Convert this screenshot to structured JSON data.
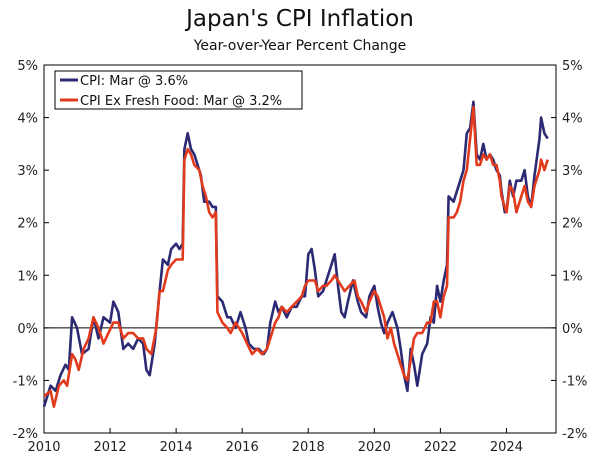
{
  "chart_data": {
    "type": "line",
    "title": "Japan's CPI Inflation",
    "subtitle": "Year-over-Year Percent Change",
    "xlabel": "",
    "ylabel": "",
    "xlim": [
      2010,
      2025.5
    ],
    "ylim": [
      -2,
      5
    ],
    "x_ticks": [
      "2010",
      "2012",
      "2014",
      "2016",
      "2018",
      "2020",
      "2022",
      "2024"
    ],
    "y_ticks": [
      "5%",
      "4%",
      "3%",
      "2%",
      "1%",
      "0%",
      "-1%",
      "-2%"
    ],
    "y_ticks_right": [
      "5%",
      "4%",
      "3%",
      "2%",
      "1%",
      "0%",
      "-1%",
      "-2%"
    ],
    "reference_line": 0,
    "legend_position": "top-left",
    "series": [
      {
        "name": "CPI: Mar @ 3.6%",
        "color": "#2b2a73",
        "points": [
          [
            2010.0,
            -1.5
          ],
          [
            2010.2,
            -1.1
          ],
          [
            2010.35,
            -1.2
          ],
          [
            2010.5,
            -0.9
          ],
          [
            2010.65,
            -0.7
          ],
          [
            2010.75,
            -0.8
          ],
          [
            2010.85,
            0.2
          ],
          [
            2011.0,
            0.0
          ],
          [
            2011.15,
            -0.5
          ],
          [
            2011.35,
            -0.4
          ],
          [
            2011.5,
            0.2
          ],
          [
            2011.65,
            -0.2
          ],
          [
            2011.8,
            0.2
          ],
          [
            2012.0,
            0.1
          ],
          [
            2012.1,
            0.5
          ],
          [
            2012.25,
            0.3
          ],
          [
            2012.4,
            -0.4
          ],
          [
            2012.55,
            -0.3
          ],
          [
            2012.7,
            -0.4
          ],
          [
            2012.85,
            -0.2
          ],
          [
            2013.0,
            -0.3
          ],
          [
            2013.1,
            -0.8
          ],
          [
            2013.2,
            -0.9
          ],
          [
            2013.35,
            -0.3
          ],
          [
            2013.5,
            0.7
          ],
          [
            2013.6,
            1.3
          ],
          [
            2013.75,
            1.2
          ],
          [
            2013.85,
            1.5
          ],
          [
            2014.0,
            1.6
          ],
          [
            2014.1,
            1.5
          ],
          [
            2014.2,
            1.6
          ],
          [
            2014.25,
            3.4
          ],
          [
            2014.35,
            3.7
          ],
          [
            2014.45,
            3.4
          ],
          [
            2014.55,
            3.3
          ],
          [
            2014.65,
            3.1
          ],
          [
            2014.75,
            2.9
          ],
          [
            2014.85,
            2.4
          ],
          [
            2015.0,
            2.4
          ],
          [
            2015.1,
            2.3
          ],
          [
            2015.2,
            2.3
          ],
          [
            2015.25,
            0.6
          ],
          [
            2015.4,
            0.5
          ],
          [
            2015.55,
            0.2
          ],
          [
            2015.65,
            0.2
          ],
          [
            2015.8,
            0.0
          ],
          [
            2015.95,
            0.3
          ],
          [
            2016.1,
            0.0
          ],
          [
            2016.2,
            -0.3
          ],
          [
            2016.35,
            -0.4
          ],
          [
            2016.5,
            -0.4
          ],
          [
            2016.65,
            -0.5
          ],
          [
            2016.75,
            -0.4
          ],
          [
            2016.85,
            0.1
          ],
          [
            2017.0,
            0.5
          ],
          [
            2017.1,
            0.3
          ],
          [
            2017.2,
            0.4
          ],
          [
            2017.35,
            0.2
          ],
          [
            2017.5,
            0.4
          ],
          [
            2017.65,
            0.4
          ],
          [
            2017.8,
            0.6
          ],
          [
            2017.9,
            0.6
          ],
          [
            2018.0,
            1.4
          ],
          [
            2018.1,
            1.5
          ],
          [
            2018.2,
            1.1
          ],
          [
            2018.3,
            0.6
          ],
          [
            2018.45,
            0.7
          ],
          [
            2018.55,
            0.9
          ],
          [
            2018.7,
            1.2
          ],
          [
            2018.8,
            1.4
          ],
          [
            2018.9,
            0.8
          ],
          [
            2019.0,
            0.3
          ],
          [
            2019.1,
            0.2
          ],
          [
            2019.2,
            0.5
          ],
          [
            2019.35,
            0.9
          ],
          [
            2019.5,
            0.5
          ],
          [
            2019.6,
            0.3
          ],
          [
            2019.75,
            0.2
          ],
          [
            2019.85,
            0.6
          ],
          [
            2020.0,
            0.8
          ],
          [
            2020.1,
            0.4
          ],
          [
            2020.2,
            0.1
          ],
          [
            2020.3,
            -0.1
          ],
          [
            2020.4,
            0.1
          ],
          [
            2020.55,
            0.3
          ],
          [
            2020.7,
            0.0
          ],
          [
            2020.8,
            -0.4
          ],
          [
            2020.9,
            -0.9
          ],
          [
            2021.0,
            -1.2
          ],
          [
            2021.1,
            -0.4
          ],
          [
            2021.2,
            -0.7
          ],
          [
            2021.3,
            -1.1
          ],
          [
            2021.45,
            -0.5
          ],
          [
            2021.6,
            -0.3
          ],
          [
            2021.7,
            0.2
          ],
          [
            2021.8,
            0.1
          ],
          [
            2021.9,
            0.8
          ],
          [
            2022.0,
            0.5
          ],
          [
            2022.1,
            0.9
          ],
          [
            2022.2,
            1.2
          ],
          [
            2022.25,
            2.5
          ],
          [
            2022.4,
            2.4
          ],
          [
            2022.5,
            2.6
          ],
          [
            2022.6,
            2.8
          ],
          [
            2022.7,
            3.0
          ],
          [
            2022.8,
            3.7
          ],
          [
            2022.9,
            3.8
          ],
          [
            2023.0,
            4.3
          ],
          [
            2023.1,
            3.3
          ],
          [
            2023.2,
            3.2
          ],
          [
            2023.3,
            3.5
          ],
          [
            2023.4,
            3.2
          ],
          [
            2023.5,
            3.3
          ],
          [
            2023.6,
            3.2
          ],
          [
            2023.7,
            3.0
          ],
          [
            2023.8,
            2.9
          ],
          [
            2023.85,
            2.6
          ],
          [
            2023.95,
            2.2
          ],
          [
            2024.0,
            2.2
          ],
          [
            2024.1,
            2.8
          ],
          [
            2024.2,
            2.5
          ],
          [
            2024.3,
            2.8
          ],
          [
            2024.45,
            2.8
          ],
          [
            2024.55,
            3.0
          ],
          [
            2024.65,
            2.5
          ],
          [
            2024.75,
            2.3
          ],
          [
            2024.85,
            2.9
          ],
          [
            2025.0,
            3.6
          ],
          [
            2025.05,
            4.0
          ],
          [
            2025.15,
            3.7
          ],
          [
            2025.25,
            3.6
          ]
        ]
      },
      {
        "name": "CPI Ex Fresh Food: Mar @ 3.2%",
        "color": "#e23a1c",
        "points": [
          [
            2010.0,
            -1.3
          ],
          [
            2010.2,
            -1.2
          ],
          [
            2010.3,
            -1.5
          ],
          [
            2010.45,
            -1.1
          ],
          [
            2010.6,
            -1.0
          ],
          [
            2010.7,
            -1.1
          ],
          [
            2010.85,
            -0.5
          ],
          [
            2010.95,
            -0.6
          ],
          [
            2011.05,
            -0.8
          ],
          [
            2011.2,
            -0.4
          ],
          [
            2011.35,
            -0.2
          ],
          [
            2011.5,
            0.2
          ],
          [
            2011.65,
            0.0
          ],
          [
            2011.8,
            -0.3
          ],
          [
            2011.95,
            -0.1
          ],
          [
            2012.1,
            0.1
          ],
          [
            2012.25,
            0.1
          ],
          [
            2012.4,
            -0.2
          ],
          [
            2012.55,
            -0.1
          ],
          [
            2012.7,
            -0.1
          ],
          [
            2012.85,
            -0.2
          ],
          [
            2013.0,
            -0.2
          ],
          [
            2013.1,
            -0.4
          ],
          [
            2013.25,
            -0.5
          ],
          [
            2013.4,
            0.0
          ],
          [
            2013.5,
            0.7
          ],
          [
            2013.6,
            0.7
          ],
          [
            2013.75,
            1.1
          ],
          [
            2013.85,
            1.2
          ],
          [
            2014.0,
            1.3
          ],
          [
            2014.1,
            1.3
          ],
          [
            2014.2,
            1.3
          ],
          [
            2014.25,
            3.2
          ],
          [
            2014.35,
            3.4
          ],
          [
            2014.45,
            3.3
          ],
          [
            2014.55,
            3.1
          ],
          [
            2014.7,
            3.0
          ],
          [
            2014.8,
            2.7
          ],
          [
            2014.9,
            2.5
          ],
          [
            2015.0,
            2.2
          ],
          [
            2015.1,
            2.1
          ],
          [
            2015.2,
            2.2
          ],
          [
            2015.25,
            0.3
          ],
          [
            2015.4,
            0.1
          ],
          [
            2015.55,
            0.0
          ],
          [
            2015.65,
            -0.1
          ],
          [
            2015.8,
            0.1
          ],
          [
            2016.0,
            -0.1
          ],
          [
            2016.15,
            -0.3
          ],
          [
            2016.3,
            -0.5
          ],
          [
            2016.45,
            -0.4
          ],
          [
            2016.6,
            -0.5
          ],
          [
            2016.75,
            -0.4
          ],
          [
            2016.85,
            -0.2
          ],
          [
            2017.0,
            0.1
          ],
          [
            2017.1,
            0.2
          ],
          [
            2017.2,
            0.4
          ],
          [
            2017.35,
            0.3
          ],
          [
            2017.5,
            0.4
          ],
          [
            2017.65,
            0.5
          ],
          [
            2017.8,
            0.6
          ],
          [
            2017.9,
            0.8
          ],
          [
            2018.0,
            0.9
          ],
          [
            2018.1,
            0.9
          ],
          [
            2018.2,
            0.9
          ],
          [
            2018.3,
            0.7
          ],
          [
            2018.45,
            0.8
          ],
          [
            2018.55,
            0.8
          ],
          [
            2018.7,
            0.9
          ],
          [
            2018.8,
            1.0
          ],
          [
            2018.9,
            0.9
          ],
          [
            2019.0,
            0.8
          ],
          [
            2019.1,
            0.7
          ],
          [
            2019.25,
            0.8
          ],
          [
            2019.4,
            0.9
          ],
          [
            2019.5,
            0.6
          ],
          [
            2019.6,
            0.5
          ],
          [
            2019.75,
            0.3
          ],
          [
            2019.85,
            0.5
          ],
          [
            2020.0,
            0.7
          ],
          [
            2020.1,
            0.6
          ],
          [
            2020.2,
            0.4
          ],
          [
            2020.3,
            0.2
          ],
          [
            2020.4,
            -0.2
          ],
          [
            2020.5,
            0.0
          ],
          [
            2020.6,
            -0.3
          ],
          [
            2020.7,
            -0.5
          ],
          [
            2020.8,
            -0.7
          ],
          [
            2020.9,
            -0.9
          ],
          [
            2021.0,
            -1.0
          ],
          [
            2021.1,
            -0.6
          ],
          [
            2021.2,
            -0.2
          ],
          [
            2021.3,
            -0.1
          ],
          [
            2021.45,
            -0.1
          ],
          [
            2021.6,
            0.1
          ],
          [
            2021.7,
            0.1
          ],
          [
            2021.8,
            0.5
          ],
          [
            2021.9,
            0.5
          ],
          [
            2022.0,
            0.2
          ],
          [
            2022.1,
            0.6
          ],
          [
            2022.2,
            0.8
          ],
          [
            2022.25,
            2.1
          ],
          [
            2022.4,
            2.1
          ],
          [
            2022.5,
            2.2
          ],
          [
            2022.6,
            2.4
          ],
          [
            2022.7,
            2.8
          ],
          [
            2022.8,
            3.0
          ],
          [
            2022.9,
            3.6
          ],
          [
            2023.0,
            4.2
          ],
          [
            2023.1,
            3.1
          ],
          [
            2023.2,
            3.1
          ],
          [
            2023.3,
            3.3
          ],
          [
            2023.4,
            3.2
          ],
          [
            2023.5,
            3.3
          ],
          [
            2023.6,
            3.1
          ],
          [
            2023.7,
            3.1
          ],
          [
            2023.8,
            2.8
          ],
          [
            2023.85,
            2.5
          ],
          [
            2023.95,
            2.3
          ],
          [
            2024.0,
            2.2
          ],
          [
            2024.1,
            2.7
          ],
          [
            2024.2,
            2.6
          ],
          [
            2024.3,
            2.2
          ],
          [
            2024.45,
            2.5
          ],
          [
            2024.55,
            2.7
          ],
          [
            2024.65,
            2.4
          ],
          [
            2024.75,
            2.3
          ],
          [
            2024.85,
            2.7
          ],
          [
            2025.0,
            3.0
          ],
          [
            2025.05,
            3.2
          ],
          [
            2025.15,
            3.0
          ],
          [
            2025.25,
            3.2
          ]
        ]
      }
    ]
  }
}
